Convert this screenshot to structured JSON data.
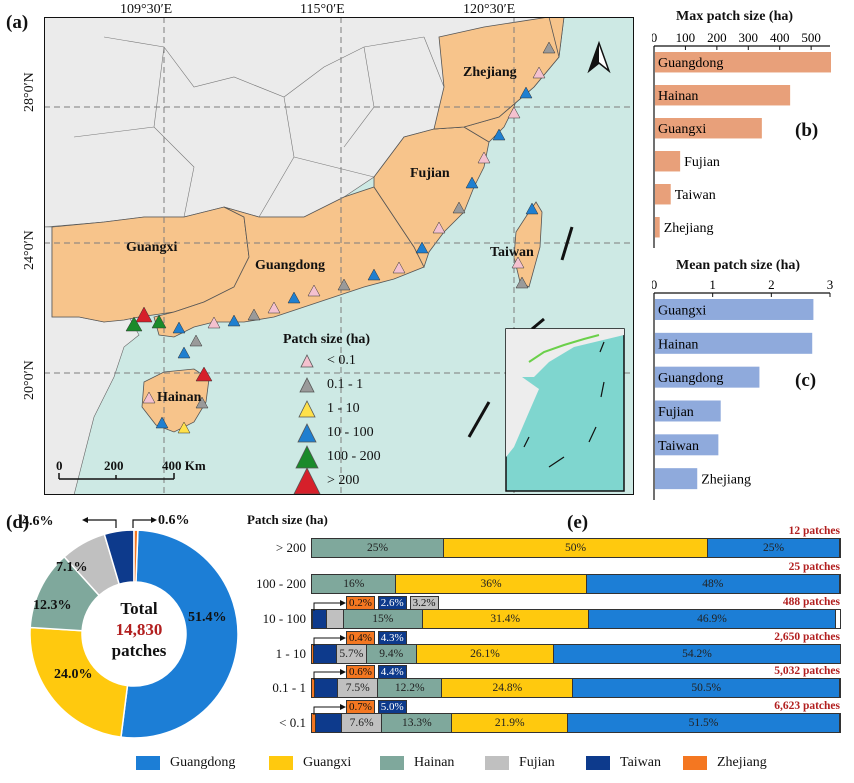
{
  "colors": {
    "land_study": "#f7c48b",
    "land_other": "#ebebeb",
    "sea": "#cde9e4",
    "guangdong": "#1c7ed6",
    "guangxi": "#ffc90e",
    "hainan": "#7fa89c",
    "fujian": "#c0c0c0",
    "taiwan": "#0d3a8c",
    "zhejiang": "#f47721",
    "max_bar": "#e8a07a",
    "mean_bar": "#8faadc"
  },
  "map": {
    "panel_label": "(a)",
    "lon_ticks": [
      "109°30′E",
      "115°0′E",
      "120°30′E"
    ],
    "lat_ticks": [
      "28°0′N",
      "24°0′N",
      "20°0′N"
    ],
    "provinces": [
      "Zhejiang",
      "Fujian",
      "Guangxi",
      "Guangdong",
      "Taiwan",
      "Hainan"
    ],
    "legend_title": "Patch size (ha)",
    "legend_items": [
      {
        "label": "< 0.1",
        "color": "#f4c1cf"
      },
      {
        "label": "0.1 - 1",
        "color": "#9a9a9a"
      },
      {
        "label": "1 - 10",
        "color": "#ffe14a"
      },
      {
        "label": "10 - 100",
        "color": "#1f7fd0"
      },
      {
        "label": "100 - 200",
        "color": "#1a8a2a"
      },
      {
        "label": "> 200",
        "color": "#d6202a"
      }
    ],
    "scale_labels": [
      "0",
      "200",
      "400 Km"
    ]
  },
  "panel_b": {
    "panel_label": "(b)",
    "title": "Max patch size (ha)",
    "ticks": [
      "0",
      "100",
      "200",
      "300",
      "400",
      "500"
    ]
  },
  "panel_c": {
    "panel_label": "(c)",
    "title": "Mean patch size (ha)",
    "ticks": [
      "0",
      "1",
      "2",
      "3"
    ]
  },
  "panel_d": {
    "panel_label": "(d)",
    "center_total": "Total",
    "center_number": "14,830",
    "center_unit": "patches",
    "slice_labels": [
      "51.4%",
      "24.0%",
      "12.3%",
      "7.1%",
      "4.6%",
      "0.6%"
    ]
  },
  "panel_e": {
    "panel_label": "(e)",
    "title": "Patch size (ha)",
    "rows": [
      {
        "cat": "> 200",
        "count": "12 patches",
        "vals": {
          "Hainan": "25%",
          "Guangxi": "50%",
          "Guangdong": "25%"
        }
      },
      {
        "cat": "100 - 200",
        "count": "25 patches",
        "vals": {
          "Hainan": "16%",
          "Guangxi": "36%",
          "Guangdong": "48%"
        }
      },
      {
        "cat": "10 - 100",
        "count": "488 patches",
        "vals": {
          "Zhejiang": "0.2%",
          "Taiwan": "2.6%",
          "Fujian": "3.2%",
          "Hainan": "15%",
          "Guangxi": "31.4%",
          "Guangdong": "46.9%"
        }
      },
      {
        "cat": "1 - 10",
        "count": "2,650 patches",
        "vals": {
          "Zhejiang": "0.4%",
          "Taiwan": "4.3%",
          "Fujian": "5.7%",
          "Hainan": "9.4%",
          "Guangxi": "26.1%",
          "Guangdong": "54.2%"
        }
      },
      {
        "cat": "0.1 - 1",
        "count": "5,032 patches",
        "vals": {
          "Zhejiang": "0.6%",
          "Taiwan": "4.4%",
          "Fujian": "7.5%",
          "Hainan": "12.2%",
          "Guangxi": "24.8%",
          "Guangdong": "50.5%"
        }
      },
      {
        "cat": "< 0.1",
        "count": "6,623 patches",
        "vals": {
          "Zhejiang": "0.7%",
          "Taiwan": "5.0%",
          "Fujian": "7.6%",
          "Hainan": "13.3%",
          "Guangxi": "21.9%",
          "Guangdong": "51.5%"
        }
      }
    ]
  },
  "legend": [
    "Guangdong",
    "Guangxi",
    "Hainan",
    "Fujian",
    "Taiwan",
    "Zhejiang"
  ],
  "chart_data": [
    {
      "type": "bar",
      "title": "Max patch size (ha)",
      "categories": [
        "Guangdong",
        "Hainan",
        "Guangxi",
        "Fujian",
        "Taiwan",
        "Zhejiang"
      ],
      "values": [
        560,
        430,
        340,
        80,
        50,
        15
      ],
      "xlim": [
        0,
        560
      ]
    },
    {
      "type": "bar",
      "title": "Mean patch size (ha)",
      "categories": [
        "Guangxi",
        "Hainan",
        "Guangdong",
        "Fujian",
        "Taiwan",
        "Zhejiang"
      ],
      "values": [
        2.7,
        2.68,
        1.78,
        1.12,
        1.08,
        0.72
      ],
      "xlim": [
        0,
        3
      ]
    },
    {
      "type": "pie",
      "title": "Total 14,830 patches",
      "categories": [
        "Guangdong",
        "Guangxi",
        "Hainan",
        "Fujian",
        "Taiwan",
        "Zhejiang"
      ],
      "values": [
        51.4,
        24.0,
        12.3,
        7.1,
        4.6,
        0.6
      ]
    },
    {
      "type": "bar",
      "title": "Patch size (ha) composition by province",
      "categories": [
        "> 200",
        "100 - 200",
        "10 - 100",
        "1 - 10",
        "0.1 - 1",
        "< 0.1"
      ],
      "series": [
        {
          "name": "Zhejiang",
          "values": [
            0,
            0,
            0.2,
            0.4,
            0.6,
            0.7
          ]
        },
        {
          "name": "Taiwan",
          "values": [
            0,
            0,
            2.6,
            4.3,
            4.4,
            5.0
          ]
        },
        {
          "name": "Fujian",
          "values": [
            0,
            0,
            3.2,
            5.7,
            7.5,
            7.6
          ]
        },
        {
          "name": "Hainan",
          "values": [
            25,
            16,
            15,
            9.4,
            12.2,
            13.3
          ]
        },
        {
          "name": "Guangxi",
          "values": [
            50,
            36,
            31.4,
            26.1,
            24.8,
            21.9
          ]
        },
        {
          "name": "Guangdong",
          "values": [
            25,
            48,
            46.9,
            54.2,
            50.5,
            51.5
          ]
        }
      ],
      "stacked": true
    }
  ]
}
